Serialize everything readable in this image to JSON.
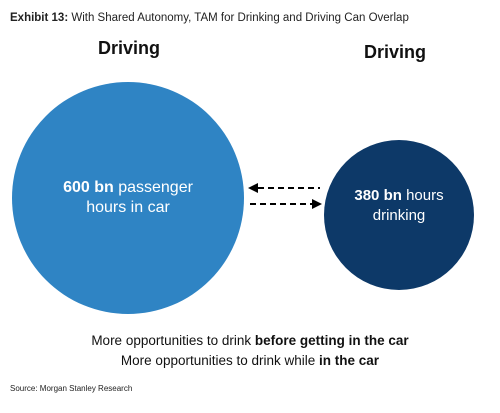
{
  "title": {
    "exhibit": "Exhibit 13:",
    "text": "With Shared Autonomy, TAM for Drinking and Driving Can Overlap"
  },
  "left_circle": {
    "heading": "Driving",
    "value": "600 bn",
    "text_line1": " passenger",
    "text_line2": "hours in car",
    "color": "#2F84C4"
  },
  "right_circle": {
    "heading": "Driving",
    "value": "380 bn",
    "text_line1": " hours",
    "text_line2": "drinking",
    "color": "#0D3968"
  },
  "footer": {
    "line1_prefix": "More opportunities to drink ",
    "line1_bold": "before getting in the car",
    "line2_prefix": "More opportunities to drink while ",
    "line2_bold": "in the car"
  },
  "source": "Source: Morgan Stanley Research"
}
